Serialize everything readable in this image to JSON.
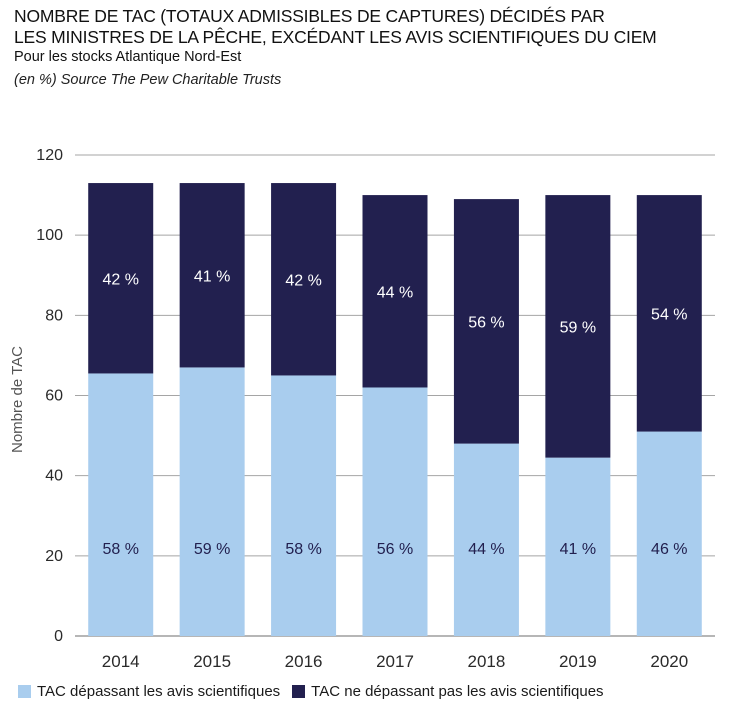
{
  "header": {
    "title_line1": "NOMBRE DE TAC (TOTAUX ADMISSIBLES DE CAPTURES) DÉCIDÉS PAR",
    "title_line2": "LES MINISTRES DE LA PÊCHE, EXCÉDANT LES AVIS SCIENTIFIQUES DU CIEM",
    "subtitle": "Pour les stocks Atlantique Nord-Est",
    "source": "(en %) Source The Pew Charitable Trusts"
  },
  "legend": {
    "items": [
      {
        "label": "TAC dépassant les avis scientifiques",
        "color": "#a9cdee"
      },
      {
        "label": "TAC ne dépassant pas les avis scientifiques",
        "color": "#22204f"
      }
    ]
  },
  "chart_data": {
    "type": "bar",
    "stacked": true,
    "categories": [
      "2014",
      "2015",
      "2016",
      "2017",
      "2018",
      "2019",
      "2020"
    ],
    "series": [
      {
        "name": "TAC dépassant les avis scientifiques",
        "color": "#a9cdee",
        "label_color": "#22204f",
        "values": [
          65.5,
          67,
          65,
          62,
          48,
          44.5,
          51
        ],
        "labels": [
          "58 %",
          "59 %",
          "58 %",
          "56 %",
          "44 %",
          "41 %",
          "46 %"
        ]
      },
      {
        "name": "TAC ne dépassant pas les avis scientifiques",
        "color": "#22204f",
        "label_color": "#ffffff",
        "values": [
          47.5,
          46,
          48,
          48,
          61,
          65.5,
          59
        ],
        "labels": [
          "42 %",
          "41 %",
          "42 %",
          "44 %",
          "56 %",
          "59 %",
          "54 %"
        ]
      }
    ],
    "ylabel": "Nombre de TAC",
    "xlabel": "",
    "ylim": [
      0,
      120
    ],
    "yticks": [
      0,
      20,
      40,
      60,
      80,
      100,
      120
    ],
    "grid": true,
    "legend_position": "bottom"
  }
}
